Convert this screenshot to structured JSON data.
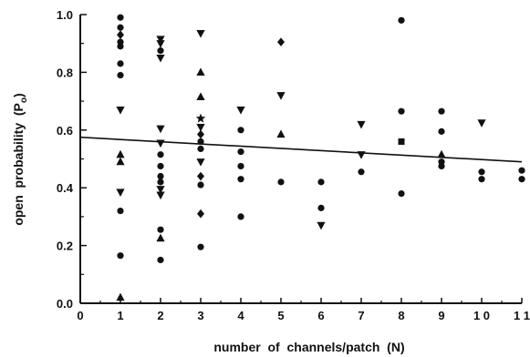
{
  "chart_data": {
    "type": "scatter",
    "xlabel": "number  of  channels/patch  (N)",
    "ylabel_main": "open  probability  (P",
    "ylabel_sub": "o",
    "ylabel_end": ")",
    "xlim": [
      0,
      11
    ],
    "ylim": [
      0,
      1.0
    ],
    "x_ticks": [
      0,
      1,
      2,
      3,
      4,
      5,
      6,
      7,
      8,
      9,
      10,
      11
    ],
    "x_tick_labels": [
      "0",
      "1",
      "2",
      "3",
      "4",
      "5",
      "6",
      "7",
      "8",
      "9",
      "1 0",
      "1 1"
    ],
    "y_ticks": [
      0,
      0.2,
      0.4,
      0.6,
      0.8,
      1.0
    ],
    "y_tick_labels": [
      "0.0",
      "0.2",
      "0.4",
      "0.6",
      "0.8",
      "1.0"
    ],
    "grid": false,
    "trend_line": {
      "x": [
        0,
        11
      ],
      "y": [
        0.575,
        0.49
      ]
    },
    "points": [
      {
        "x": 1,
        "y": 0.99,
        "marker": "circle"
      },
      {
        "x": 1,
        "y": 0.955,
        "marker": "circle"
      },
      {
        "x": 1,
        "y": 0.93,
        "marker": "diamond"
      },
      {
        "x": 1,
        "y": 0.905,
        "marker": "circle"
      },
      {
        "x": 1,
        "y": 0.89,
        "marker": "circle"
      },
      {
        "x": 1,
        "y": 0.83,
        "marker": "circle"
      },
      {
        "x": 1,
        "y": 0.79,
        "marker": "circle"
      },
      {
        "x": 1,
        "y": 0.67,
        "marker": "triangle-down"
      },
      {
        "x": 1,
        "y": 0.515,
        "marker": "triangle-up"
      },
      {
        "x": 1,
        "y": 0.49,
        "marker": "triangle-up"
      },
      {
        "x": 1,
        "y": 0.385,
        "marker": "triangle-down"
      },
      {
        "x": 1,
        "y": 0.32,
        "marker": "circle"
      },
      {
        "x": 1,
        "y": 0.165,
        "marker": "circle"
      },
      {
        "x": 1,
        "y": 0.02,
        "marker": "triangle-up"
      },
      {
        "x": 2,
        "y": 0.915,
        "marker": "triangle-down"
      },
      {
        "x": 2,
        "y": 0.9,
        "marker": "triangle-down"
      },
      {
        "x": 2,
        "y": 0.875,
        "marker": "circle"
      },
      {
        "x": 2,
        "y": 0.85,
        "marker": "triangle-down"
      },
      {
        "x": 2,
        "y": 0.605,
        "marker": "triangle-down"
      },
      {
        "x": 2,
        "y": 0.555,
        "marker": "triangle-down"
      },
      {
        "x": 2,
        "y": 0.515,
        "marker": "circle"
      },
      {
        "x": 2,
        "y": 0.475,
        "marker": "circle"
      },
      {
        "x": 2,
        "y": 0.44,
        "marker": "circle"
      },
      {
        "x": 2,
        "y": 0.42,
        "marker": "circle"
      },
      {
        "x": 2,
        "y": 0.395,
        "marker": "triangle-down"
      },
      {
        "x": 2,
        "y": 0.375,
        "marker": "triangle-down"
      },
      {
        "x": 2,
        "y": 0.255,
        "marker": "circle"
      },
      {
        "x": 2,
        "y": 0.225,
        "marker": "triangle-up"
      },
      {
        "x": 2,
        "y": 0.15,
        "marker": "circle"
      },
      {
        "x": 3,
        "y": 0.935,
        "marker": "triangle-down"
      },
      {
        "x": 3,
        "y": 0.8,
        "marker": "triangle-up"
      },
      {
        "x": 3,
        "y": 0.715,
        "marker": "triangle-up"
      },
      {
        "x": 3,
        "y": 0.64,
        "marker": "star"
      },
      {
        "x": 3,
        "y": 0.61,
        "marker": "triangle-down"
      },
      {
        "x": 3,
        "y": 0.585,
        "marker": "diamond"
      },
      {
        "x": 3,
        "y": 0.56,
        "marker": "circle"
      },
      {
        "x": 3,
        "y": 0.535,
        "marker": "circle"
      },
      {
        "x": 3,
        "y": 0.49,
        "marker": "triangle-down"
      },
      {
        "x": 3,
        "y": 0.44,
        "marker": "diamond"
      },
      {
        "x": 3,
        "y": 0.41,
        "marker": "circle"
      },
      {
        "x": 3,
        "y": 0.31,
        "marker": "diamond"
      },
      {
        "x": 3,
        "y": 0.195,
        "marker": "circle"
      },
      {
        "x": 4,
        "y": 0.67,
        "marker": "triangle-down"
      },
      {
        "x": 4,
        "y": 0.6,
        "marker": "circle"
      },
      {
        "x": 4,
        "y": 0.525,
        "marker": "circle"
      },
      {
        "x": 4,
        "y": 0.475,
        "marker": "circle"
      },
      {
        "x": 4,
        "y": 0.43,
        "marker": "circle"
      },
      {
        "x": 4,
        "y": 0.3,
        "marker": "circle"
      },
      {
        "x": 5,
        "y": 0.905,
        "marker": "diamond"
      },
      {
        "x": 5,
        "y": 0.72,
        "marker": "triangle-down"
      },
      {
        "x": 5,
        "y": 0.585,
        "marker": "triangle-up"
      },
      {
        "x": 5,
        "y": 0.42,
        "marker": "circle"
      },
      {
        "x": 6,
        "y": 0.42,
        "marker": "circle"
      },
      {
        "x": 6,
        "y": 0.33,
        "marker": "circle"
      },
      {
        "x": 6,
        "y": 0.27,
        "marker": "triangle-down"
      },
      {
        "x": 7,
        "y": 0.62,
        "marker": "triangle-down"
      },
      {
        "x": 7,
        "y": 0.515,
        "marker": "triangle-down"
      },
      {
        "x": 7,
        "y": 0.455,
        "marker": "circle"
      },
      {
        "x": 8,
        "y": 0.98,
        "marker": "circle"
      },
      {
        "x": 8,
        "y": 0.665,
        "marker": "circle"
      },
      {
        "x": 8,
        "y": 0.56,
        "marker": "square"
      },
      {
        "x": 8,
        "y": 0.38,
        "marker": "circle"
      },
      {
        "x": 9,
        "y": 0.665,
        "marker": "circle"
      },
      {
        "x": 9,
        "y": 0.595,
        "marker": "circle"
      },
      {
        "x": 9,
        "y": 0.515,
        "marker": "triangle-up"
      },
      {
        "x": 9,
        "y": 0.49,
        "marker": "circle"
      },
      {
        "x": 9,
        "y": 0.475,
        "marker": "circle"
      },
      {
        "x": 10,
        "y": 0.625,
        "marker": "triangle-down"
      },
      {
        "x": 10,
        "y": 0.455,
        "marker": "circle"
      },
      {
        "x": 10,
        "y": 0.43,
        "marker": "circle"
      },
      {
        "x": 11,
        "y": 0.46,
        "marker": "circle"
      },
      {
        "x": 11,
        "y": 0.43,
        "marker": "circle"
      }
    ]
  }
}
